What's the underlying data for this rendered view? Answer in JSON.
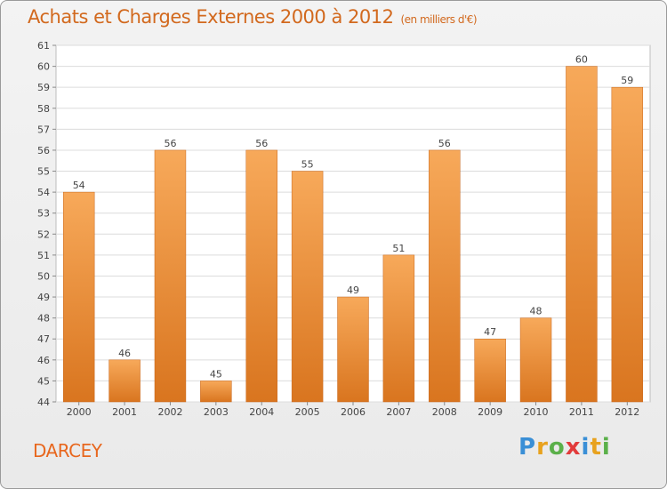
{
  "header": {
    "title": "Achats et Charges Externes 2000 à 2012",
    "unit": "(en milliers d'€)"
  },
  "commune": "DARCEY",
  "logo": {
    "text": "Proxiti",
    "letters": [
      "P",
      "r",
      "o",
      "x",
      "i",
      "t",
      "i"
    ],
    "colors": [
      "#3a8fd6",
      "#e8a21e",
      "#5bb04a",
      "#e23b3b",
      "#3a8fd6",
      "#e8a21e",
      "#5bb04a"
    ]
  },
  "chart_data": {
    "type": "bar",
    "categories": [
      "2000",
      "2001",
      "2002",
      "2003",
      "2004",
      "2005",
      "2006",
      "2007",
      "2008",
      "2009",
      "2010",
      "2011",
      "2012"
    ],
    "values": [
      54,
      46,
      56,
      45,
      56,
      55,
      49,
      51,
      56,
      47,
      48,
      60,
      59
    ],
    "data_labels": [
      "54",
      "46",
      "56",
      "45",
      "56",
      "55",
      "49",
      "51",
      "56",
      "47",
      "48",
      "60",
      "59"
    ],
    "ylim": [
      44,
      61
    ],
    "yticks": [
      "44",
      "45",
      "46",
      "47",
      "48",
      "49",
      "50",
      "51",
      "52",
      "53",
      "54",
      "55",
      "56",
      "57",
      "58",
      "59",
      "60",
      "61"
    ],
    "grid": true,
    "bar_color_top": "#f7a95a",
    "bar_color_bottom": "#d9751f"
  }
}
